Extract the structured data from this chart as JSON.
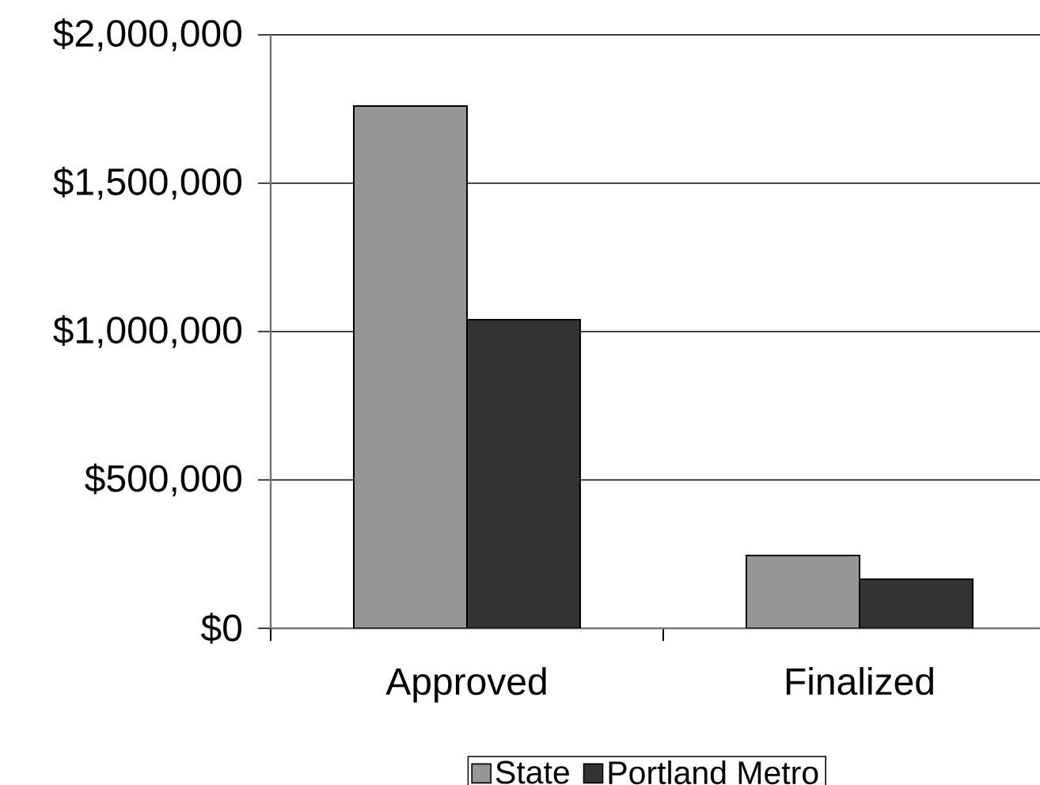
{
  "chart_data": {
    "type": "bar",
    "categories": [
      "Approved",
      "Finalized"
    ],
    "series": [
      {
        "name": "State",
        "color": "#969696",
        "values": [
          1760000,
          245000
        ]
      },
      {
        "name": "Portland Metro",
        "color": "#333333",
        "values": [
          1040000,
          165000
        ]
      }
    ],
    "ylim": [
      0,
      2000000
    ],
    "yticks": [
      {
        "value": 0,
        "label": "$0"
      },
      {
        "value": 500000,
        "label": "$500,000"
      },
      {
        "value": 1000000,
        "label": "$1,000,000"
      },
      {
        "value": 1500000,
        "label": "$1,500,000"
      },
      {
        "value": 2000000,
        "label": "$2,000,000"
      }
    ],
    "grid": "y",
    "legend": "bottom"
  }
}
